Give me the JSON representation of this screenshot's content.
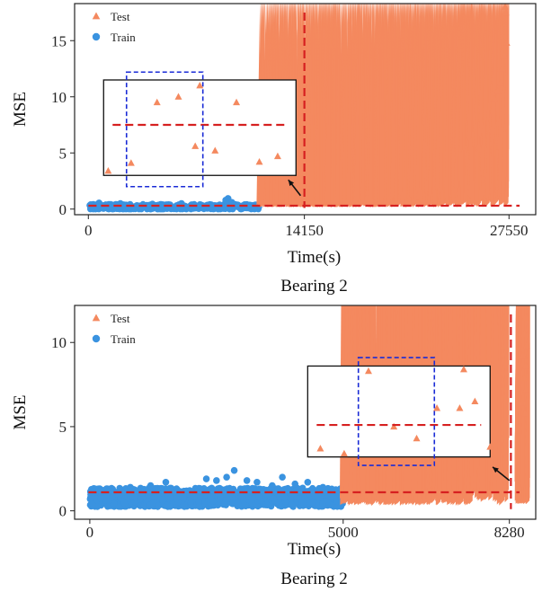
{
  "colors": {
    "test": "#f4895f",
    "train": "#3a93e0",
    "threshold": "#d62020",
    "zoom_inner": "#1a2bd6",
    "box": "#111111",
    "arrow": "#111111"
  },
  "chart_data": [
    {
      "type": "scatter",
      "caption": "Bearing 2",
      "xlabel": "Time(s)",
      "ylabel": "MSE",
      "xlim": [
        -900,
        29300
      ],
      "ylim": [
        -0.5,
        18.3
      ],
      "xticks": [
        0,
        14150,
        27550
      ],
      "xtick_labels": [
        "0",
        "14150",
        "27550"
      ],
      "yticks": [
        0,
        5,
        10,
        15
      ],
      "ytick_labels": [
        "0",
        "5",
        "10",
        "15"
      ],
      "grid": false,
      "legend": {
        "placement": "top-left",
        "entries": [
          {
            "label": "Test",
            "marker": "triangle",
            "color_key": "test"
          },
          {
            "label": "Train",
            "marker": "circle",
            "color_key": "train"
          }
        ]
      },
      "series": [
        {
          "name": "Train",
          "marker": "circle",
          "x_range": [
            0,
            11200
          ],
          "baseline": 0.2,
          "typical_max": 0.5,
          "outliers": [
            [
              4200,
              0.45
            ],
            [
              6100,
              0.5
            ],
            [
              9000,
              0.8
            ],
            [
              9150,
              0.95
            ],
            [
              9400,
              0.6
            ],
            [
              2100,
              0.5
            ],
            [
              700,
              0.55
            ]
          ]
        },
        {
          "name": "Test",
          "marker": "triangle",
          "x_range": [
            11200,
            27550
          ],
          "baseline": 0.3,
          "growth_end": 5.0,
          "peak": 18.0,
          "outliers": [
            [
              27300,
              18.0
            ],
            [
              27350,
              17.5
            ],
            [
              27100,
              12.5
            ],
            [
              27000,
              11.2
            ],
            [
              26800,
              10.5
            ],
            [
              26600,
              9.8
            ],
            [
              27400,
              14.8
            ],
            [
              27250,
              13.6
            ]
          ]
        }
      ],
      "threshold_horizontal": 0.3,
      "threshold_vertical_x": 14150,
      "inset": {
        "x_range": [
          1000,
          13600
        ],
        "y_range": [
          3.0,
          11.5
        ],
        "mean_line_y": 7.5,
        "inner_highlight_x": [
          2500,
          7500
        ],
        "inner_highlight_y": [
          2.0,
          12.2
        ],
        "points": [
          [
            1300,
            3.4
          ],
          [
            2800,
            4.1
          ],
          [
            4500,
            9.5
          ],
          [
            5900,
            10.0
          ],
          [
            7000,
            5.6
          ],
          [
            7300,
            11.0
          ],
          [
            8300,
            5.2
          ],
          [
            9700,
            9.5
          ],
          [
            11200,
            4.2
          ],
          [
            12400,
            4.7
          ]
        ]
      },
      "arrow": {
        "from": [
          13900,
          1.2
        ],
        "to": [
          13100,
          2.6
        ]
      }
    },
    {
      "type": "scatter",
      "caption": "Bearing 2",
      "xlabel": "Time(s)",
      "ylabel": "MSE",
      "xlim": [
        -300,
        8800
      ],
      "ylim": [
        -0.5,
        12.2
      ],
      "xticks": [
        0,
        5000,
        8280
      ],
      "xtick_labels": [
        "0",
        "5000",
        "8280"
      ],
      "yticks": [
        0,
        5,
        10
      ],
      "ytick_labels": [
        "0",
        "5",
        "10"
      ],
      "grid": false,
      "legend": {
        "placement": "top-left",
        "entries": [
          {
            "label": "Test",
            "marker": "triangle",
            "color_key": "test"
          },
          {
            "label": "Train",
            "marker": "circle",
            "color_key": "train"
          }
        ]
      },
      "series": [
        {
          "name": "Train",
          "marker": "circle",
          "x_range": [
            0,
            5000
          ],
          "baseline": 0.5,
          "typical_max": 1.2,
          "outliers": [
            [
              1500,
              1.7
            ],
            [
              2300,
              1.9
            ],
            [
              2500,
              1.8
            ],
            [
              2700,
              2.0
            ],
            [
              2850,
              2.4
            ],
            [
              3100,
              1.8
            ],
            [
              3300,
              1.7
            ],
            [
              3600,
              1.5
            ],
            [
              3800,
              2.0
            ],
            [
              4050,
              1.6
            ],
            [
              4300,
              1.7
            ],
            [
              4600,
              1.4
            ],
            [
              800,
              1.4
            ],
            [
              1200,
              1.5
            ]
          ]
        },
        {
          "name": "Test",
          "marker": "triangle",
          "x_range": [
            5000,
            8280
          ],
          "baseline": 0.6,
          "growth_end": 4.0,
          "peak": 11.5,
          "outliers": [
            [
              8600,
              11.5
            ],
            [
              8580,
              10.5
            ],
            [
              8620,
              9.8
            ],
            [
              8550,
              9.2
            ],
            [
              8600,
              8.6
            ],
            [
              8570,
              7.9
            ],
            [
              8610,
              7.2
            ],
            [
              8540,
              6.4
            ],
            [
              8590,
              5.8
            ]
          ]
        }
      ],
      "threshold_horizontal": 1.1,
      "threshold_vertical_x": 8310,
      "inset": {
        "x_range": [
          4300,
          7900
        ],
        "y_range": [
          3.2,
          8.6
        ],
        "mean_line_y": 5.1,
        "inner_highlight_x": [
          5300,
          6800
        ],
        "inner_highlight_y": [
          2.7,
          9.1
        ],
        "points": [
          [
            4550,
            3.7
          ],
          [
            5020,
            3.4
          ],
          [
            5500,
            8.3
          ],
          [
            6000,
            5.0
          ],
          [
            6450,
            4.3
          ],
          [
            6850,
            6.1
          ],
          [
            7300,
            6.1
          ],
          [
            7600,
            6.5
          ],
          [
            7900,
            3.8
          ],
          [
            7380,
            8.4
          ]
        ]
      },
      "arrow": {
        "from": [
          8280,
          1.8
        ],
        "to": [
          7950,
          2.6
        ]
      }
    }
  ]
}
